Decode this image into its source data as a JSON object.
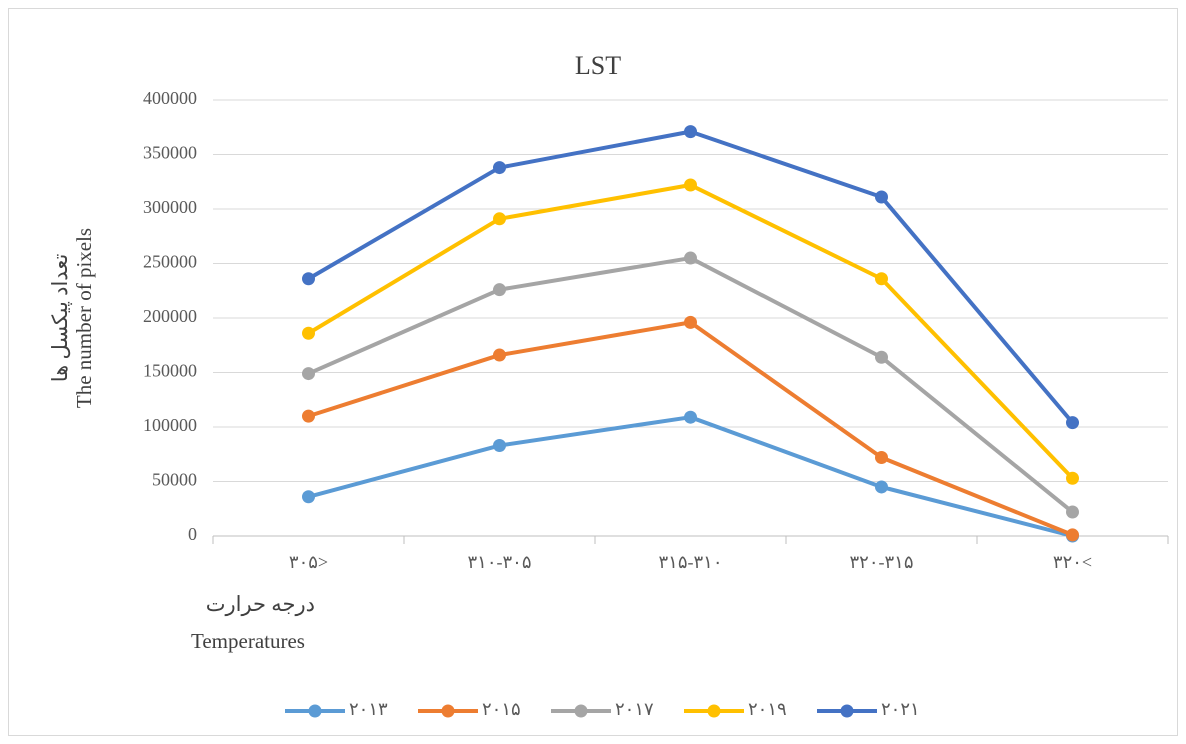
{
  "chart_data": {
    "type": "line",
    "title": "LST",
    "y_label": [
      "تعداد پیکسل ها",
      "The number of pixels"
    ],
    "x_label": [
      "درجه حرارت",
      "Temperatures"
    ],
    "categories": [
      "۳۰۵>",
      "۳۱۰-۳۰۵",
      "۳۱۵-۳۱۰",
      "۳۲۰-۳۱۵",
      "۳۲۰<"
    ],
    "series": [
      {
        "name": "۲۰۱۳",
        "color": "#5b9bd5",
        "values": [
          36000,
          83000,
          109000,
          45000,
          0
        ]
      },
      {
        "name": "۲۰۱۵",
        "color": "#ed7d31",
        "values": [
          110000,
          166000,
          196000,
          72000,
          1000
        ]
      },
      {
        "name": "۲۰۱۷",
        "color": "#a5a5a5",
        "values": [
          149000,
          226000,
          255000,
          164000,
          22000
        ]
      },
      {
        "name": "۲۰۱۹",
        "color": "#ffc000",
        "values": [
          186000,
          291000,
          322000,
          236000,
          53000
        ]
      },
      {
        "name": "۲۰۲۱",
        "color": "#4472c4",
        "values": [
          236000,
          338000,
          371000,
          311000,
          104000
        ]
      }
    ],
    "ylim": [
      0,
      400000
    ],
    "yticks": [
      0,
      50000,
      100000,
      150000,
      200000,
      250000,
      300000,
      350000,
      400000
    ],
    "grid": true,
    "legend": "bottom"
  }
}
